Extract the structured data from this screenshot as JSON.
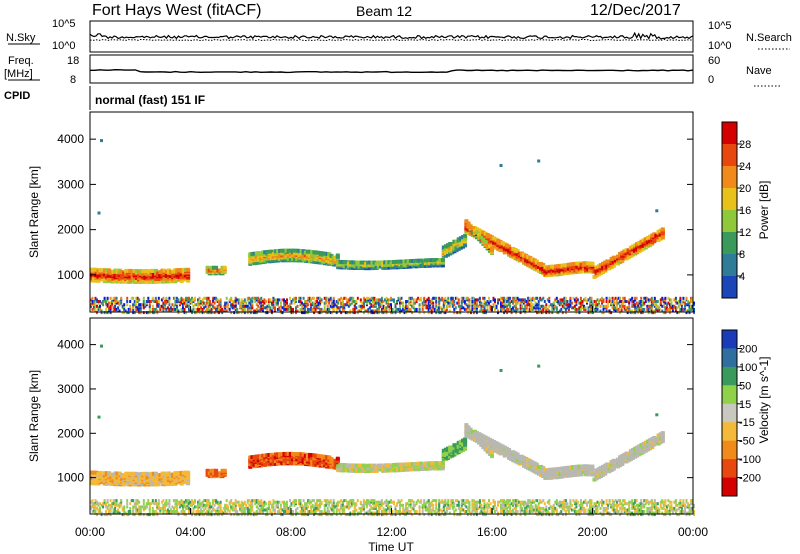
{
  "header": {
    "station": "Fort Hays West (fitACF)",
    "beam": "Beam 12",
    "date": "12/Dec/2017"
  },
  "top_strips": {
    "nsky_label": "N.Sky",
    "nsearch_label": "N.Search",
    "nsky_ticks": [
      "10^5",
      "10^0"
    ],
    "nsearch_ticks": [
      "10^5",
      "10^0"
    ],
    "freq_label_1": "Freq.",
    "freq_label_2": "[MHz]",
    "freq_ticks": [
      "18",
      "8"
    ],
    "nave_label": "Nave",
    "nave_ticks": [
      "60",
      "0"
    ],
    "cpid_label": "CPID",
    "cpid_text": "normal (fast) 151 IF"
  },
  "colors": {
    "power_scale": [
      "#0018e0",
      "#1a46b8",
      "#2f7c98",
      "#3a9a5c",
      "#8fc83a",
      "#e8c11a",
      "#f08a1a",
      "#e8480f",
      "#d40000"
    ],
    "velocity_scale": [
      "#d40000",
      "#e8480f",
      "#f08a1a",
      "#f5b93a",
      "#c8c8c0",
      "#8fd24a",
      "#3a9a5c",
      "#2f6fa0",
      "#1a3cb8"
    ],
    "ground_scatter": "#b8b8b0"
  },
  "chart_data": [
    {
      "type": "heatmap",
      "name": "power",
      "ylabel": "Slant Range [km]",
      "xlabel": "",
      "xlim": [
        0,
        24
      ],
      "ylim": [
        180,
        4600
      ],
      "yticks": [
        "1000",
        "2000",
        "3000",
        "4000"
      ],
      "colorbar_label": "Power [dB]",
      "colorbar_ticks": [
        "4",
        "8",
        "12",
        "16",
        "20",
        "24",
        "28"
      ],
      "colorbar_range": [
        0,
        32
      ]
    },
    {
      "type": "heatmap",
      "name": "velocity",
      "ylabel": "Slant Range [km]",
      "xlabel": "Time UT",
      "xlim": [
        0,
        24
      ],
      "ylim": [
        180,
        4600
      ],
      "xticks": [
        "00:00",
        "04:00",
        "08:00",
        "12:00",
        "16:00",
        "20:00",
        "00:00"
      ],
      "yticks": [
        "1000",
        "2000",
        "3000",
        "4000"
      ],
      "colorbar_label": "Velocity [m s^-1]",
      "colorbar_ticks": [
        "200",
        "100",
        "50",
        "15",
        "-15",
        "-50",
        "-100",
        "-200"
      ]
    }
  ]
}
